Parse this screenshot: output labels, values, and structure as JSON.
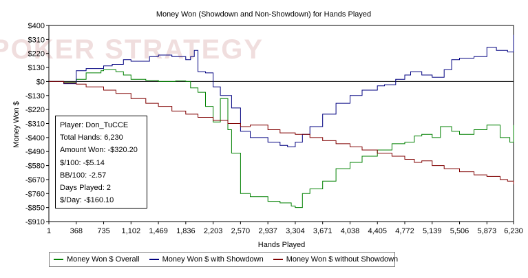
{
  "chart_data": {
    "type": "line",
    "title": "Money Won (Showdown and Non-Showdown) for Hands Played",
    "xlabel": "Hands Played",
    "ylabel": "Money Won $",
    "xlim": [
      1,
      6230
    ],
    "ylim": [
      -910,
      400
    ],
    "x_ticks": [
      1,
      368,
      735,
      1102,
      1469,
      1836,
      2203,
      2570,
      2937,
      3304,
      3671,
      4038,
      4405,
      4772,
      5139,
      5506,
      5873,
      6230
    ],
    "x_tick_labels": [
      "1",
      "368",
      "735",
      "1,102",
      "1,469",
      "1,836",
      "2,203",
      "2,570",
      "2,937",
      "3,304",
      "3,671",
      "4,038",
      "4,405",
      "4,772",
      "5,139",
      "5,506",
      "5,873",
      "6,230"
    ],
    "y_ticks": [
      400,
      310,
      220,
      130,
      0,
      -130,
      -220,
      -310,
      -400,
      -490,
      -580,
      -670,
      -760,
      -850,
      -910
    ],
    "y_tick_labels": [
      "$400",
      "$310",
      "$220",
      "$130",
      "$0",
      "-$130",
      "-$220",
      "-$310",
      "-$400",
      "-$490",
      "-$580",
      "-$670",
      "-$760",
      "-$850",
      "-$910"
    ],
    "grid": false,
    "legend_position": "bottom",
    "series": [
      {
        "name": "Money Won $ Overall",
        "color": "#008000",
        "points": [
          [
            1,
            0
          ],
          [
            200,
            -10
          ],
          [
            368,
            20
          ],
          [
            500,
            80
          ],
          [
            700,
            100
          ],
          [
            735,
            110
          ],
          [
            900,
            90
          ],
          [
            1000,
            60
          ],
          [
            1102,
            20
          ],
          [
            1300,
            10
          ],
          [
            1469,
            0
          ],
          [
            1700,
            5
          ],
          [
            1836,
            0
          ],
          [
            1900,
            -60
          ],
          [
            2000,
            -100
          ],
          [
            2100,
            -200
          ],
          [
            2203,
            -300
          ],
          [
            2300,
            -150
          ],
          [
            2400,
            -350
          ],
          [
            2450,
            -500
          ],
          [
            2570,
            -760
          ],
          [
            2700,
            -780
          ],
          [
            2937,
            -810
          ],
          [
            3100,
            -820
          ],
          [
            3250,
            -840
          ],
          [
            3304,
            -850
          ],
          [
            3400,
            -760
          ],
          [
            3500,
            -730
          ],
          [
            3671,
            -680
          ],
          [
            3850,
            -600
          ],
          [
            4038,
            -560
          ],
          [
            4200,
            -520
          ],
          [
            4405,
            -480
          ],
          [
            4600,
            -440
          ],
          [
            4772,
            -430
          ],
          [
            4900,
            -390
          ],
          [
            5000,
            -380
          ],
          [
            5139,
            -400
          ],
          [
            5250,
            -330
          ],
          [
            5400,
            -360
          ],
          [
            5506,
            -380
          ],
          [
            5700,
            -350
          ],
          [
            5873,
            -320
          ],
          [
            6050,
            -400
          ],
          [
            6180,
            -430
          ],
          [
            6230,
            -320
          ]
        ]
      },
      {
        "name": "Money Won $ with Showdown",
        "color": "#000080",
        "points": [
          [
            1,
            0
          ],
          [
            200,
            -20
          ],
          [
            368,
            100
          ],
          [
            500,
            120
          ],
          [
            735,
            140
          ],
          [
            850,
            150
          ],
          [
            1000,
            180
          ],
          [
            1102,
            170
          ],
          [
            1250,
            170
          ],
          [
            1350,
            200
          ],
          [
            1469,
            210
          ],
          [
            1650,
            200
          ],
          [
            1836,
            180
          ],
          [
            1900,
            200
          ],
          [
            1950,
            240
          ],
          [
            2000,
            90
          ],
          [
            2100,
            80
          ],
          [
            2203,
            -50
          ],
          [
            2300,
            -130
          ],
          [
            2450,
            -210
          ],
          [
            2570,
            -360
          ],
          [
            2700,
            -400
          ],
          [
            2937,
            -430
          ],
          [
            3100,
            -450
          ],
          [
            3200,
            -460
          ],
          [
            3304,
            -430
          ],
          [
            3400,
            -380
          ],
          [
            3500,
            -330
          ],
          [
            3671,
            -250
          ],
          [
            3850,
            -180
          ],
          [
            4038,
            -130
          ],
          [
            4200,
            -80
          ],
          [
            4405,
            -40
          ],
          [
            4500,
            -30
          ],
          [
            4650,
            20
          ],
          [
            4772,
            60
          ],
          [
            4850,
            90
          ],
          [
            5000,
            60
          ],
          [
            5139,
            40
          ],
          [
            5300,
            110
          ],
          [
            5400,
            180
          ],
          [
            5506,
            190
          ],
          [
            5700,
            200
          ],
          [
            5873,
            260
          ],
          [
            6000,
            240
          ],
          [
            6150,
            230
          ],
          [
            6230,
            340
          ]
        ]
      },
      {
        "name": "Money Won $ without Showdown",
        "color": "#800000",
        "points": [
          [
            1,
            0
          ],
          [
            200,
            -15
          ],
          [
            368,
            -25
          ],
          [
            500,
            -50
          ],
          [
            735,
            -80
          ],
          [
            900,
            -110
          ],
          [
            1102,
            -150
          ],
          [
            1300,
            -180
          ],
          [
            1469,
            -200
          ],
          [
            1650,
            -230
          ],
          [
            1836,
            -250
          ],
          [
            2000,
            -270
          ],
          [
            2203,
            -290
          ],
          [
            2400,
            -310
          ],
          [
            2570,
            -330
          ],
          [
            2700,
            -320
          ],
          [
            2937,
            -350
          ],
          [
            3100,
            -370
          ],
          [
            3304,
            -380
          ],
          [
            3500,
            -400
          ],
          [
            3671,
            -420
          ],
          [
            3850,
            -440
          ],
          [
            4038,
            -460
          ],
          [
            4200,
            -480
          ],
          [
            4405,
            -500
          ],
          [
            4600,
            -520
          ],
          [
            4772,
            -540
          ],
          [
            4900,
            -560
          ],
          [
            5000,
            -550
          ],
          [
            5139,
            -580
          ],
          [
            5300,
            -600
          ],
          [
            5506,
            -620
          ],
          [
            5700,
            -640
          ],
          [
            5873,
            -650
          ],
          [
            6050,
            -670
          ],
          [
            6150,
            -680
          ],
          [
            6230,
            -700
          ]
        ]
      }
    ]
  },
  "stats_box": {
    "player": "Player: Don_TuCCE",
    "total_hands": "Total Hands: 6,230",
    "amount_won": "Amount Won: -$320.20",
    "per_100": "$/100: -$5.14",
    "bb_100": "BB/100: -2.57",
    "days_played": "Days Played: 2",
    "per_day": "$/Day: -$160.10"
  },
  "watermark": "POKER STRATEGY"
}
